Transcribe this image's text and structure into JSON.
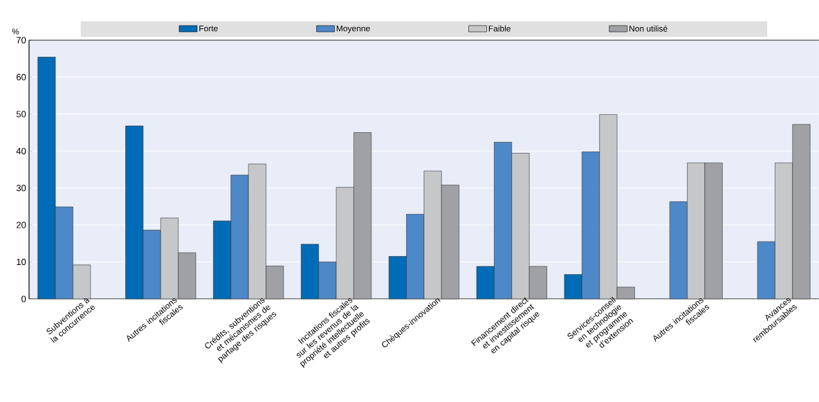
{
  "chart_data": {
    "type": "bar",
    "ylabel": "%",
    "categories": [
      "Subventions à la concurrence",
      "Autres incitations fiscales",
      "Crédits, subventions et mécanismes de partage des risques",
      "Incitations fiscales sur les revenus de la propriété intellectuelle et autres profits",
      "Chèques-innovation",
      "Financement direct et investissement en capital risque",
      "Services-conseil en technologie et programme d’extension",
      "Autres incitations fiscales",
      "Avances remboursables"
    ],
    "series": [
      {
        "name": "Forte",
        "color": "#006bb6",
        "values": [
          65.4,
          46.8,
          21.1,
          14.8,
          11.5,
          8.8,
          6.6,
          null,
          null
        ]
      },
      {
        "name": "Moyenne",
        "color": "#4d88c8",
        "values": [
          24.9,
          18.6,
          33.5,
          10.0,
          22.9,
          42.4,
          39.8,
          26.3,
          15.5
        ]
      },
      {
        "name": "Faible",
        "color": "#c6c7c9",
        "values": [
          9.2,
          21.9,
          36.5,
          30.2,
          34.6,
          39.4,
          49.9,
          36.8,
          36.8
        ]
      },
      {
        "name": "Non utilisé",
        "color": "#a0a1a5",
        "values": [
          null,
          12.5,
          8.9,
          45.0,
          30.8,
          8.8,
          3.2,
          36.8,
          47.2
        ]
      }
    ],
    "ylim": [
      0,
      70
    ],
    "yticks": [
      0,
      10,
      20,
      30,
      40,
      50,
      60,
      70
    ],
    "grid": true,
    "legend": "top"
  }
}
